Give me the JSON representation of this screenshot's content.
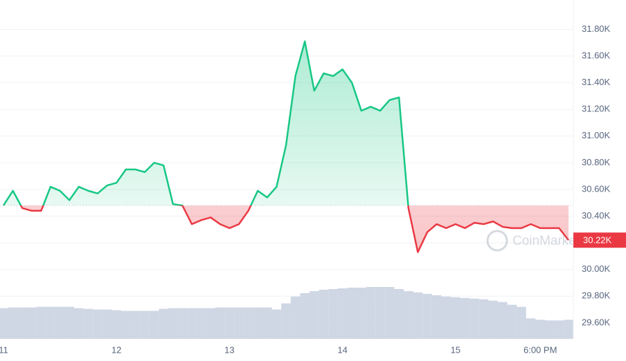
{
  "chart_data": {
    "type": "line",
    "categories": [
      "11",
      null,
      null,
      null,
      null,
      null,
      null,
      null,
      null,
      null,
      null,
      null,
      "12",
      null,
      null,
      null,
      null,
      null,
      null,
      null,
      null,
      null,
      null,
      null,
      "13",
      null,
      null,
      null,
      null,
      null,
      null,
      null,
      null,
      null,
      null,
      null,
      "14",
      null,
      null,
      null,
      null,
      null,
      null,
      null,
      null,
      null,
      null,
      null,
      "15",
      null,
      null,
      null,
      null,
      null,
      null,
      null,
      null,
      "6:00 PM",
      null,
      null,
      null
    ],
    "series": [
      {
        "values": [
          30.48,
          30.59,
          30.46,
          30.44,
          30.44,
          30.62,
          30.59,
          30.52,
          30.62,
          30.59,
          30.57,
          30.63,
          30.65,
          30.75,
          30.75,
          30.73,
          30.8,
          30.78,
          30.49,
          30.48,
          30.34,
          30.37,
          30.39,
          30.34,
          30.31,
          30.34,
          30.44,
          30.59,
          30.54,
          30.62,
          30.93,
          31.45,
          31.71,
          31.34,
          31.47,
          31.45,
          31.5,
          31.4,
          31.19,
          31.22,
          31.19,
          31.27,
          31.29,
          30.46,
          30.13,
          30.28,
          30.34,
          30.31,
          30.34,
          30.31,
          30.35,
          30.34,
          30.36,
          30.32,
          30.31,
          30.31,
          30.34,
          30.31,
          30.31,
          30.31,
          30.22
        ]
      }
    ],
    "volume": [
      45,
      46,
      46,
      46,
      47,
      47,
      47,
      47,
      45,
      44,
      43,
      43,
      42,
      41,
      41,
      41,
      41,
      44,
      45,
      45,
      45,
      45,
      45,
      46,
      46,
      46,
      46,
      46,
      46,
      43,
      52,
      62,
      67,
      70,
      72,
      73,
      74,
      75,
      75,
      76,
      76,
      76,
      73,
      70,
      68,
      66,
      64,
      62,
      61,
      60,
      59,
      58,
      56,
      54,
      50,
      47,
      30,
      28,
      27,
      27,
      28
    ],
    "above_color": "#16c784",
    "below_color": "#ea3943",
    "volume_color": "#cfd6e4",
    "baseline": 30.48,
    "last_price_label": "30.22K",
    "watermark": "CoinMarketCap",
    "ylim": [
      29.48,
      32.02
    ],
    "yticks": [
      {
        "value": 29.6,
        "label": "29.60K"
      },
      {
        "value": 29.8,
        "label": "29.80K"
      },
      {
        "value": 30.0,
        "label": "30.00K"
      },
      {
        "value": 30.2,
        "label": "30.20K"
      },
      {
        "value": 30.4,
        "label": "30.40K"
      },
      {
        "value": 30.6,
        "label": "30.60K"
      },
      {
        "value": 30.8,
        "label": "30.80K"
      },
      {
        "value": 31.0,
        "label": "31.00K"
      },
      {
        "value": 31.2,
        "label": "31.20K"
      },
      {
        "value": 31.4,
        "label": "31.40K"
      },
      {
        "value": 31.6,
        "label": "31.60K"
      },
      {
        "value": 31.8,
        "label": "31.80K"
      }
    ],
    "grid": true
  }
}
